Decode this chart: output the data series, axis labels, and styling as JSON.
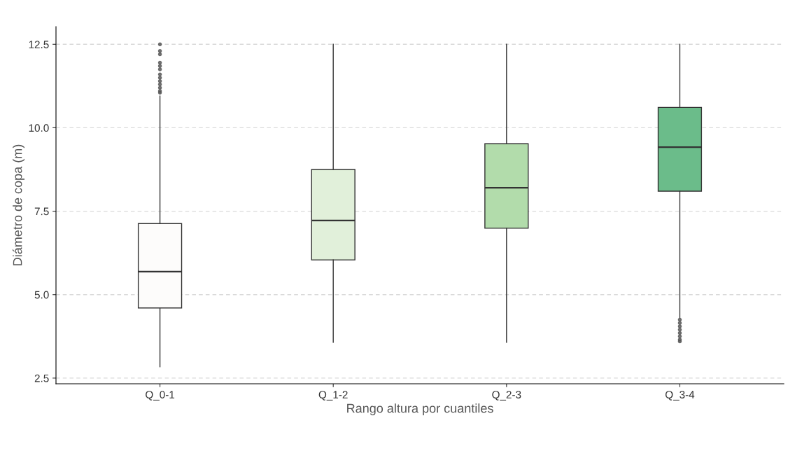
{
  "chart_data": {
    "type": "box",
    "xlabel": "Rango altura por cuantiles",
    "ylabel": "Diámetro de copa (m)",
    "categories": [
      "Q_0-1",
      "Q_1-2",
      "Q_2-3",
      "Q_3-4"
    ],
    "colors": [
      "#fdfcfb",
      "#e1f0da",
      "#b2dcab",
      "#6bbc8a"
    ],
    "boxes": [
      {
        "low": 2.84,
        "q1": 4.6,
        "median": 5.69,
        "q3": 7.13,
        "high": 10.95,
        "outliers": [
          11.05,
          11.1,
          11.2,
          11.3,
          11.4,
          11.5,
          11.6,
          11.75,
          11.85,
          11.95,
          12.2,
          12.3,
          12.5
        ]
      },
      {
        "low": 3.57,
        "q1": 6.04,
        "median": 7.22,
        "q3": 8.75,
        "high": 12.5
      },
      {
        "low": 3.57,
        "q1": 6.99,
        "median": 8.2,
        "q3": 9.52,
        "high": 12.5
      },
      {
        "low": 4.3,
        "q1": 8.1,
        "median": 9.42,
        "q3": 10.61,
        "high": 12.5,
        "outliers": [
          3.6,
          3.65,
          3.75,
          3.85,
          3.95,
          4.05,
          4.15,
          4.25
        ]
      }
    ],
    "ylim": [
      2.33,
      13.03
    ],
    "yticks": [
      2.5,
      {
        "value": 5,
        "label": "5.0"
      },
      7.5,
      {
        "value": 10,
        "label": "10.0"
      },
      12.5
    ],
    "grid": "y"
  }
}
